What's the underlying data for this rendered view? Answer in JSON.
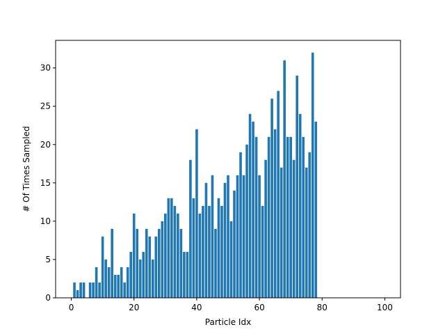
{
  "chart_data": {
    "type": "bar",
    "xlabel": "Particle Idx",
    "ylabel": "# Of Times Sampled",
    "xlim": [
      -5,
      105
    ],
    "ylim": [
      0,
      33.6
    ],
    "xticks": [
      0,
      20,
      40,
      60,
      80,
      100
    ],
    "yticks": [
      0,
      5,
      10,
      15,
      20,
      25,
      30
    ],
    "grid": false,
    "bar_color": "#1f77b4",
    "x": [
      0,
      1,
      2,
      3,
      4,
      5,
      6,
      7,
      8,
      9,
      10,
      11,
      12,
      13,
      14,
      15,
      16,
      17,
      18,
      19,
      20,
      21,
      22,
      23,
      24,
      25,
      26,
      27,
      28,
      29,
      30,
      31,
      32,
      33,
      34,
      35,
      36,
      37,
      38,
      39,
      40,
      41,
      42,
      43,
      44,
      45,
      46,
      47,
      48,
      49,
      50,
      51,
      52,
      53,
      54,
      55,
      56,
      57,
      58,
      59,
      60,
      61,
      62,
      63,
      64,
      65,
      66,
      67,
      68,
      69,
      70,
      71,
      72,
      73,
      74,
      75,
      76,
      77,
      78,
      79
    ],
    "values": [
      0,
      2,
      1,
      2,
      2,
      0,
      2,
      2,
      4,
      2,
      8,
      5,
      4,
      9,
      3,
      3,
      4,
      2,
      4,
      6,
      11,
      9,
      5,
      6,
      9,
      8,
      5,
      8,
      9,
      10,
      11,
      13,
      13,
      12,
      11,
      9,
      6,
      6,
      18,
      13,
      22,
      11,
      12,
      15,
      12,
      16,
      9,
      13,
      12,
      15,
      16,
      10,
      14,
      16,
      19,
      16,
      20,
      24,
      23,
      21,
      16,
      12,
      18,
      21,
      26,
      22,
      27,
      17,
      31,
      21,
      21,
      18,
      29,
      24,
      21,
      17,
      19,
      32,
      23,
      0
    ]
  }
}
